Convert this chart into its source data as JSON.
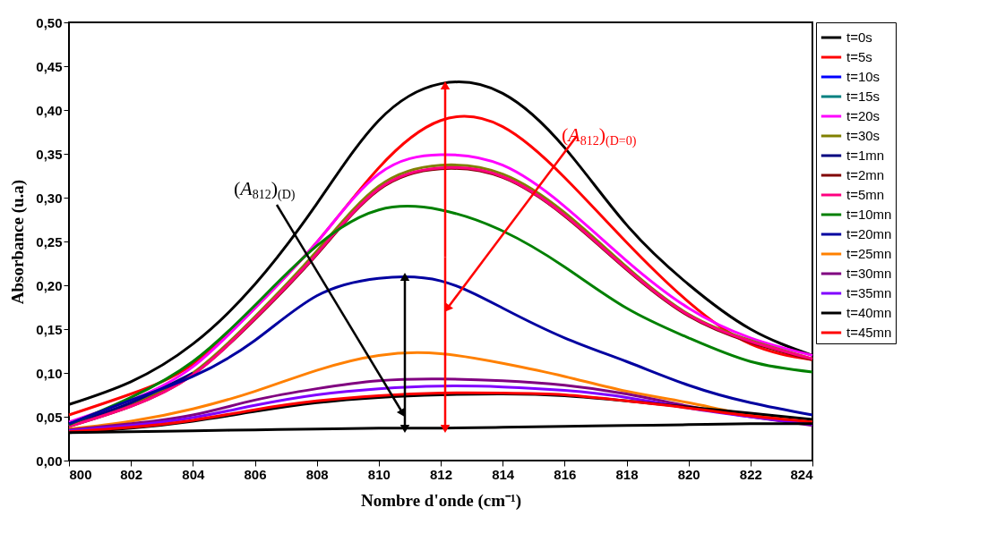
{
  "chart_data": {
    "type": "line",
    "xlabel": "Nombre d'onde (cm⁻¹)",
    "ylabel": "Absorbance (u.a)",
    "x": [
      800,
      802,
      804,
      806,
      808,
      810,
      812,
      814,
      816,
      818,
      820,
      822,
      824
    ],
    "xlim": [
      800,
      824
    ],
    "xticks": [
      800,
      802,
      804,
      806,
      808,
      810,
      812,
      814,
      816,
      818,
      820,
      822,
      824
    ],
    "ylim": [
      0,
      0.5
    ],
    "yticks": [
      {
        "value": 0,
        "label": "0,00"
      },
      {
        "value": 0.05,
        "label": "0,05"
      },
      {
        "value": 0.1,
        "label": "0,10"
      },
      {
        "value": 0.15,
        "label": "0,15"
      },
      {
        "value": 0.2,
        "label": "0,20"
      },
      {
        "value": 0.25,
        "label": "0,25"
      },
      {
        "value": 0.3,
        "label": "0,30"
      },
      {
        "value": 0.35,
        "label": "0,35"
      },
      {
        "value": 0.4,
        "label": "0,40"
      },
      {
        "value": 0.45,
        "label": "0,45"
      },
      {
        "value": 0.5,
        "label": "0,50"
      }
    ],
    "grid": false,
    "legend": "right",
    "marker": "none",
    "line_style": "solid",
    "series": [
      {
        "name": "t=0s",
        "color": "#000000",
        "values": [
          0.064,
          0.09,
          0.133,
          0.201,
          0.293,
          0.388,
          0.43,
          0.419,
          0.357,
          0.269,
          0.201,
          0.15,
          0.12
        ]
      },
      {
        "name": "t=5s",
        "color": "#ff0000",
        "values": [
          0.052,
          0.076,
          0.11,
          0.174,
          0.249,
          0.334,
          0.388,
          0.381,
          0.323,
          0.249,
          0.181,
          0.133,
          0.115
        ]
      },
      {
        "name": "t=10s",
        "color": "#0000ff",
        "values": [
          null,
          null,
          null,
          null,
          null,
          null,
          null,
          null,
          null,
          null,
          null,
          null,
          null
        ]
      },
      {
        "name": "t=15s",
        "color": "#008080",
        "values": [
          null,
          null,
          null,
          null,
          null,
          null,
          null,
          null,
          null,
          null,
          null,
          null,
          null
        ]
      },
      {
        "name": "t=20s",
        "color": "#ff00ff",
        "values": [
          0.044,
          0.069,
          0.107,
          0.174,
          0.249,
          0.327,
          0.349,
          0.337,
          0.29,
          0.228,
          0.174,
          0.14,
          0.12
        ]
      },
      {
        "name": "t=30s",
        "color": "#808000",
        "values": [
          0.04,
          0.064,
          0.1,
          0.164,
          0.239,
          0.313,
          0.337,
          0.327,
          0.283,
          0.221,
          0.167,
          0.137,
          0.116
        ]
      },
      {
        "name": "t=1mn",
        "color": "#000080",
        "values": [
          0.042,
          0.066,
          0.1,
          null,
          null,
          null,
          null,
          null,
          null,
          null,
          null,
          null,
          null
        ]
      },
      {
        "name": "t=2mn",
        "color": "#800000",
        "values": [
          0.039,
          0.062,
          0.098,
          0.161,
          0.235,
          0.309,
          0.333,
          0.323,
          0.279,
          0.218,
          0.165,
          0.135,
          0.115
        ]
      },
      {
        "name": "t=5mn",
        "color": "#ff0080",
        "values": [
          0.039,
          0.062,
          0.098,
          0.162,
          0.236,
          0.31,
          0.334,
          0.324,
          0.28,
          0.219,
          0.166,
          0.136,
          0.116
        ]
      },
      {
        "name": "t=10mn",
        "color": "#008000",
        "values": [
          0.041,
          0.072,
          0.113,
          0.177,
          0.245,
          0.286,
          0.286,
          0.262,
          0.221,
          0.174,
          0.14,
          0.113,
          0.101
        ]
      },
      {
        "name": "t=20mn",
        "color": "#0000a0",
        "values": [
          0.042,
          0.069,
          0.096,
          0.137,
          0.188,
          0.208,
          0.205,
          0.174,
          0.14,
          0.113,
          0.086,
          0.066,
          0.052
        ]
      },
      {
        "name": "t=25mn",
        "color": "#ff8000",
        "values": [
          0.036,
          0.045,
          0.059,
          0.079,
          0.103,
          0.12,
          0.122,
          0.111,
          0.096,
          0.079,
          0.066,
          0.052,
          0.044
        ]
      },
      {
        "name": "t=30mn",
        "color": "#800080",
        "values": [
          0.035,
          0.042,
          0.052,
          0.069,
          0.082,
          0.091,
          0.093,
          0.091,
          0.086,
          0.076,
          0.062,
          0.05,
          0.04
        ]
      },
      {
        "name": "t=35mn",
        "color": "#8000ff",
        "values": [
          0.034,
          0.04,
          0.049,
          0.063,
          0.075,
          0.082,
          0.085,
          0.084,
          0.08,
          0.072,
          0.06,
          0.05,
          0.041
        ]
      },
      {
        "name": "t=40mn",
        "color": "#000000",
        "values": [
          0.032,
          0.037,
          0.045,
          0.056,
          0.066,
          0.072,
          0.075,
          0.076,
          0.074,
          0.068,
          0.061,
          0.054,
          0.047
        ]
      },
      {
        "name": "t=45mn",
        "color": "#ff0000",
        "values": [
          0.033,
          0.038,
          0.046,
          0.058,
          0.068,
          0.074,
          0.077,
          0.077,
          0.075,
          0.068,
          0.06,
          0.051,
          0.044
        ]
      },
      {
        "color": "#000000",
        "values": [
          0.032,
          0.033,
          0.034,
          0.035,
          0.036,
          0.037,
          0.037,
          0.038,
          0.039,
          0.04,
          0.041,
          0.042,
          0.042
        ]
      }
    ],
    "annotations": [
      "(A$_{812}$)$_{(D)}$",
      "(A$_{812}$)$_{(D=0)}$"
    ]
  }
}
